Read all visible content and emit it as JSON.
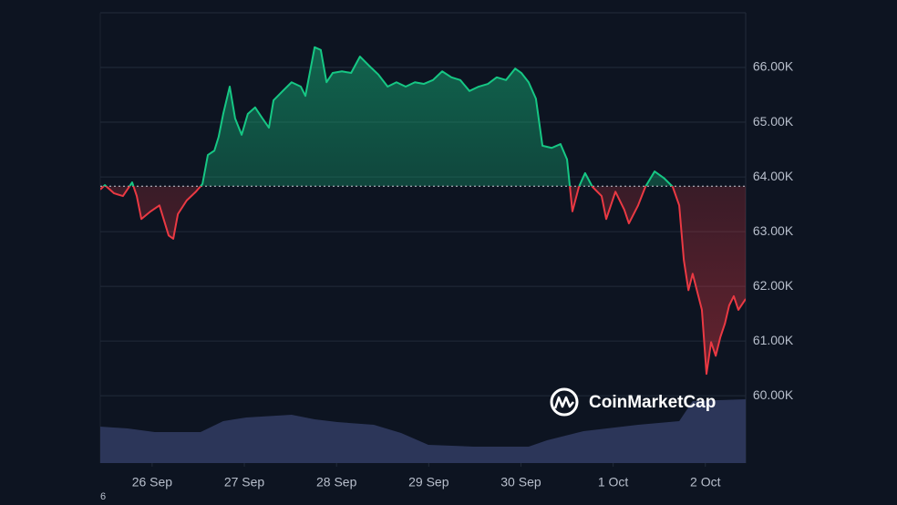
{
  "chart_data": {
    "type": "line",
    "x": [
      0,
      1.2,
      3.6,
      5.9,
      8.3,
      9.5,
      10.7,
      13.1,
      15.4,
      17.8,
      19.0,
      20.2,
      22.5,
      24.9,
      26.6,
      28.0,
      29.7,
      30.8,
      32.0,
      33.7,
      35.1,
      36.8,
      38.4,
      40.3,
      42.2,
      43.9,
      45.1,
      47.5,
      49.8,
      52.2,
      53.4,
      55.8,
      57.4,
      58.9,
      60.5,
      62.9,
      65.3,
      67.6,
      70.0,
      72.4,
      74.8,
      77.1,
      79.5,
      81.9,
      84.2,
      86.6,
      89.0,
      91.4,
      93.7,
      96.1,
      98.5,
      100.9,
      103.2,
      105.6,
      108.0,
      109.6,
      111.5,
      113.4,
      115.1,
      117.5,
      119.8,
      121.5,
      122.9,
      124.6,
      126.2,
      128.1,
      130.5,
      131.7,
      134.1,
      136.4,
      137.6,
      140.0,
      141.9,
      144.3,
      146.7,
      149.0,
      150.7,
      151.9,
      153.1,
      154.2,
      155.4,
      156.6,
      157.8,
      159.0,
      160.2,
      161.4,
      162.6,
      163.7,
      164.9,
      166.1,
      168.0
    ],
    "values": [
      63770,
      63850,
      63700,
      63650,
      63900,
      63650,
      63230,
      63370,
      63480,
      62930,
      62870,
      63320,
      63570,
      63730,
      63870,
      64400,
      64480,
      64730,
      65150,
      65650,
      65070,
      64770,
      65150,
      65270,
      65070,
      64900,
      65400,
      65570,
      65730,
      65650,
      65480,
      66370,
      66320,
      65730,
      65900,
      65930,
      65900,
      66200,
      66030,
      65870,
      65650,
      65730,
      65650,
      65730,
      65700,
      65770,
      65930,
      65820,
      65770,
      65570,
      65650,
      65700,
      65820,
      65770,
      65980,
      65900,
      65730,
      65430,
      64570,
      64530,
      64600,
      64320,
      63370,
      63820,
      64070,
      63820,
      63650,
      63230,
      63730,
      63400,
      63150,
      63480,
      63820,
      64100,
      63980,
      63820,
      63480,
      62480,
      61930,
      62230,
      61900,
      61570,
      60400,
      60980,
      60730,
      61070,
      61320,
      61650,
      61820,
      61570,
      61770
    ],
    "baseline": 63830,
    "colors": {
      "above": "#16c784",
      "below": "#ea3943"
    },
    "xlim": [
      0,
      168
    ],
    "xticks": [
      {
        "value": 13.5,
        "label": "26 Sep"
      },
      {
        "value": 37.5,
        "label": "27 Sep"
      },
      {
        "value": 61.5,
        "label": "28 Sep"
      },
      {
        "value": 85.5,
        "label": "29 Sep"
      },
      {
        "value": 109.5,
        "label": "30 Sep"
      },
      {
        "value": 133.5,
        "label": "1 Oct"
      },
      {
        "value": 157.5,
        "label": "2 Oct"
      }
    ],
    "ylim": [
      58770,
      67000
    ],
    "yticks": [
      {
        "value": 60000,
        "label": "60.00K"
      },
      {
        "value": 61000,
        "label": "61.00K"
      },
      {
        "value": 62000,
        "label": "62.00K"
      },
      {
        "value": 63000,
        "label": "63.00K"
      },
      {
        "value": 64000,
        "label": "64.00K"
      },
      {
        "value": 65000,
        "label": "65.00K"
      },
      {
        "value": 66000,
        "label": "66.00K"
      }
    ],
    "grid": true,
    "volume": {
      "x": [
        0,
        7.1,
        14.2,
        26.1,
        32.0,
        38.0,
        49.8,
        55.8,
        61.7,
        71.2,
        78.3,
        85.4,
        97.3,
        111.5,
        116.3,
        125.8,
        140.0,
        150.7,
        154.2,
        168.0
      ],
      "values": [
        40,
        38,
        34,
        34,
        46,
        50,
        53,
        48,
        45,
        42,
        33,
        20,
        18,
        18,
        25,
        35,
        42,
        46,
        68,
        70
      ],
      "ylim": [
        0,
        100
      ],
      "color": "#2c3659"
    },
    "watermark": "CoinMarketCap",
    "footnote": "6"
  }
}
